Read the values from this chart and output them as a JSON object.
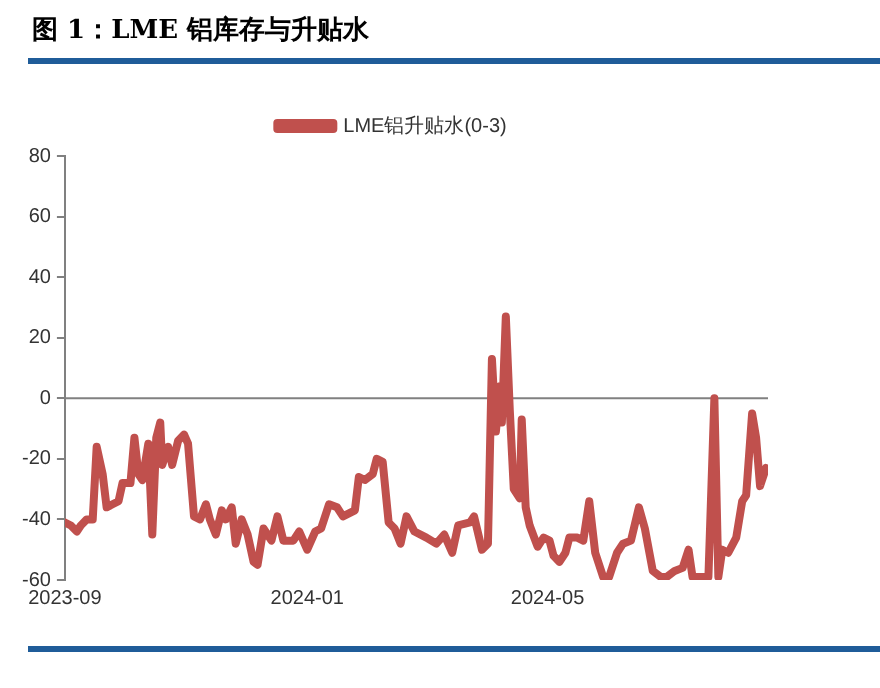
{
  "chart_data": {
    "type": "line",
    "title": "图 1：LME 铝库存与升贴水",
    "x": [
      "2023-09-01",
      "2023-09-04",
      "2023-09-07",
      "2023-09-09",
      "2023-09-12",
      "2023-09-15",
      "2023-09-17",
      "2023-09-20",
      "2023-09-22",
      "2023-09-25",
      "2023-09-28",
      "2023-09-30",
      "2023-10-04",
      "2023-10-06",
      "2023-10-08",
      "2023-10-10",
      "2023-10-13",
      "2023-10-15",
      "2023-10-17",
      "2023-10-19",
      "2023-10-20",
      "2023-10-23",
      "2023-10-25",
      "2023-10-28",
      "2023-10-31",
      "2023-11-02",
      "2023-11-05",
      "2023-11-08",
      "2023-11-11",
      "2023-11-13",
      "2023-11-16",
      "2023-11-19",
      "2023-11-21",
      "2023-11-24",
      "2023-11-26",
      "2023-11-29",
      "2023-12-02",
      "2023-12-05",
      "2023-12-07",
      "2023-12-10",
      "2023-12-14",
      "2023-12-17",
      "2023-12-20",
      "2023-12-25",
      "2023-12-28",
      "2024-01-01",
      "2024-01-05",
      "2024-01-08",
      "2024-01-12",
      "2024-01-16",
      "2024-01-19",
      "2024-01-25",
      "2024-01-27",
      "2024-01-30",
      "2024-02-03",
      "2024-02-05",
      "2024-02-08",
      "2024-02-11",
      "2024-02-14",
      "2024-02-17",
      "2024-02-20",
      "2024-02-24",
      "2024-03-01",
      "2024-03-06",
      "2024-03-10",
      "2024-03-14",
      "2024-03-17",
      "2024-03-23",
      "2024-03-25",
      "2024-03-29",
      "2024-04-01",
      "2024-04-03",
      "2024-04-05",
      "2024-04-07",
      "2024-04-08",
      "2024-04-10",
      "2024-04-12",
      "2024-04-14",
      "2024-04-17",
      "2024-04-18",
      "2024-04-20",
      "2024-04-22",
      "2024-04-26",
      "2024-04-29",
      "2024-05-02",
      "2024-05-04",
      "2024-05-07",
      "2024-05-10",
      "2024-05-12",
      "2024-05-16",
      "2024-05-19",
      "2024-05-22",
      "2024-05-25",
      "2024-05-29",
      "2024-06-01",
      "2024-06-05",
      "2024-06-08",
      "2024-06-12",
      "2024-06-16",
      "2024-06-19",
      "2024-06-23",
      "2024-06-27",
      "2024-06-30",
      "2024-07-04",
      "2024-07-08",
      "2024-07-11",
      "2024-07-13",
      "2024-07-17",
      "2024-07-21",
      "2024-07-24",
      "2024-07-26",
      "2024-07-28",
      "2024-07-31",
      "2024-08-04",
      "2024-08-07",
      "2024-08-09",
      "2024-08-12",
      "2024-08-14",
      "2024-08-16",
      "2024-08-19"
    ],
    "series": [
      {
        "name": "LME铝升贴水(0-3)",
        "color": "#c0504d",
        "values": [
          -41,
          -42,
          -44,
          -42,
          -40,
          -40,
          -16,
          -25,
          -36,
          -35,
          -34,
          -28,
          -28,
          -13,
          -25,
          -27,
          -15,
          -45,
          -13,
          -8,
          -22,
          -16,
          -22,
          -14,
          -12,
          -15,
          -39,
          -40,
          -35,
          -40,
          -45,
          -37,
          -40,
          -36,
          -48,
          -40,
          -45,
          -54,
          -55,
          -43,
          -47,
          -39,
          -47,
          -47,
          -44,
          -50,
          -44,
          -43,
          -35,
          -36,
          -39,
          -37,
          -26,
          -27,
          -25,
          -20,
          -21,
          -41,
          -43,
          -48,
          -39,
          -44,
          -46,
          -48,
          -45,
          -51,
          -42,
          -41,
          -39,
          -50,
          -48,
          13,
          -11,
          4,
          -8,
          27,
          -4,
          -30,
          -33,
          -7,
          -36,
          -42,
          -49,
          -46,
          -47,
          -52,
          -54,
          -51,
          -46,
          -46,
          -47,
          -34,
          -51,
          -59,
          -59,
          -51,
          -48,
          -47,
          -36,
          -43,
          -57,
          -59,
          -59,
          -57,
          -56,
          -50,
          -59,
          -59,
          -59,
          0,
          -59,
          -50,
          -51,
          -46,
          -34,
          -32,
          -5,
          -13,
          -29,
          -23
        ]
      }
    ],
    "xlim": [
      "2023-09-01",
      "2024-08-20"
    ],
    "xticks": [
      "2023-09",
      "2024-01",
      "2024-05"
    ],
    "ylim": [
      -60,
      80
    ],
    "yticks": [
      -60,
      -40,
      -20,
      0,
      20,
      40,
      60,
      80
    ],
    "ref_lines": [
      {
        "axis": "y",
        "value": 0,
        "color": "#808080"
      }
    ],
    "grid": false,
    "legend": "top",
    "marker": "none",
    "line_style": "solid"
  }
}
